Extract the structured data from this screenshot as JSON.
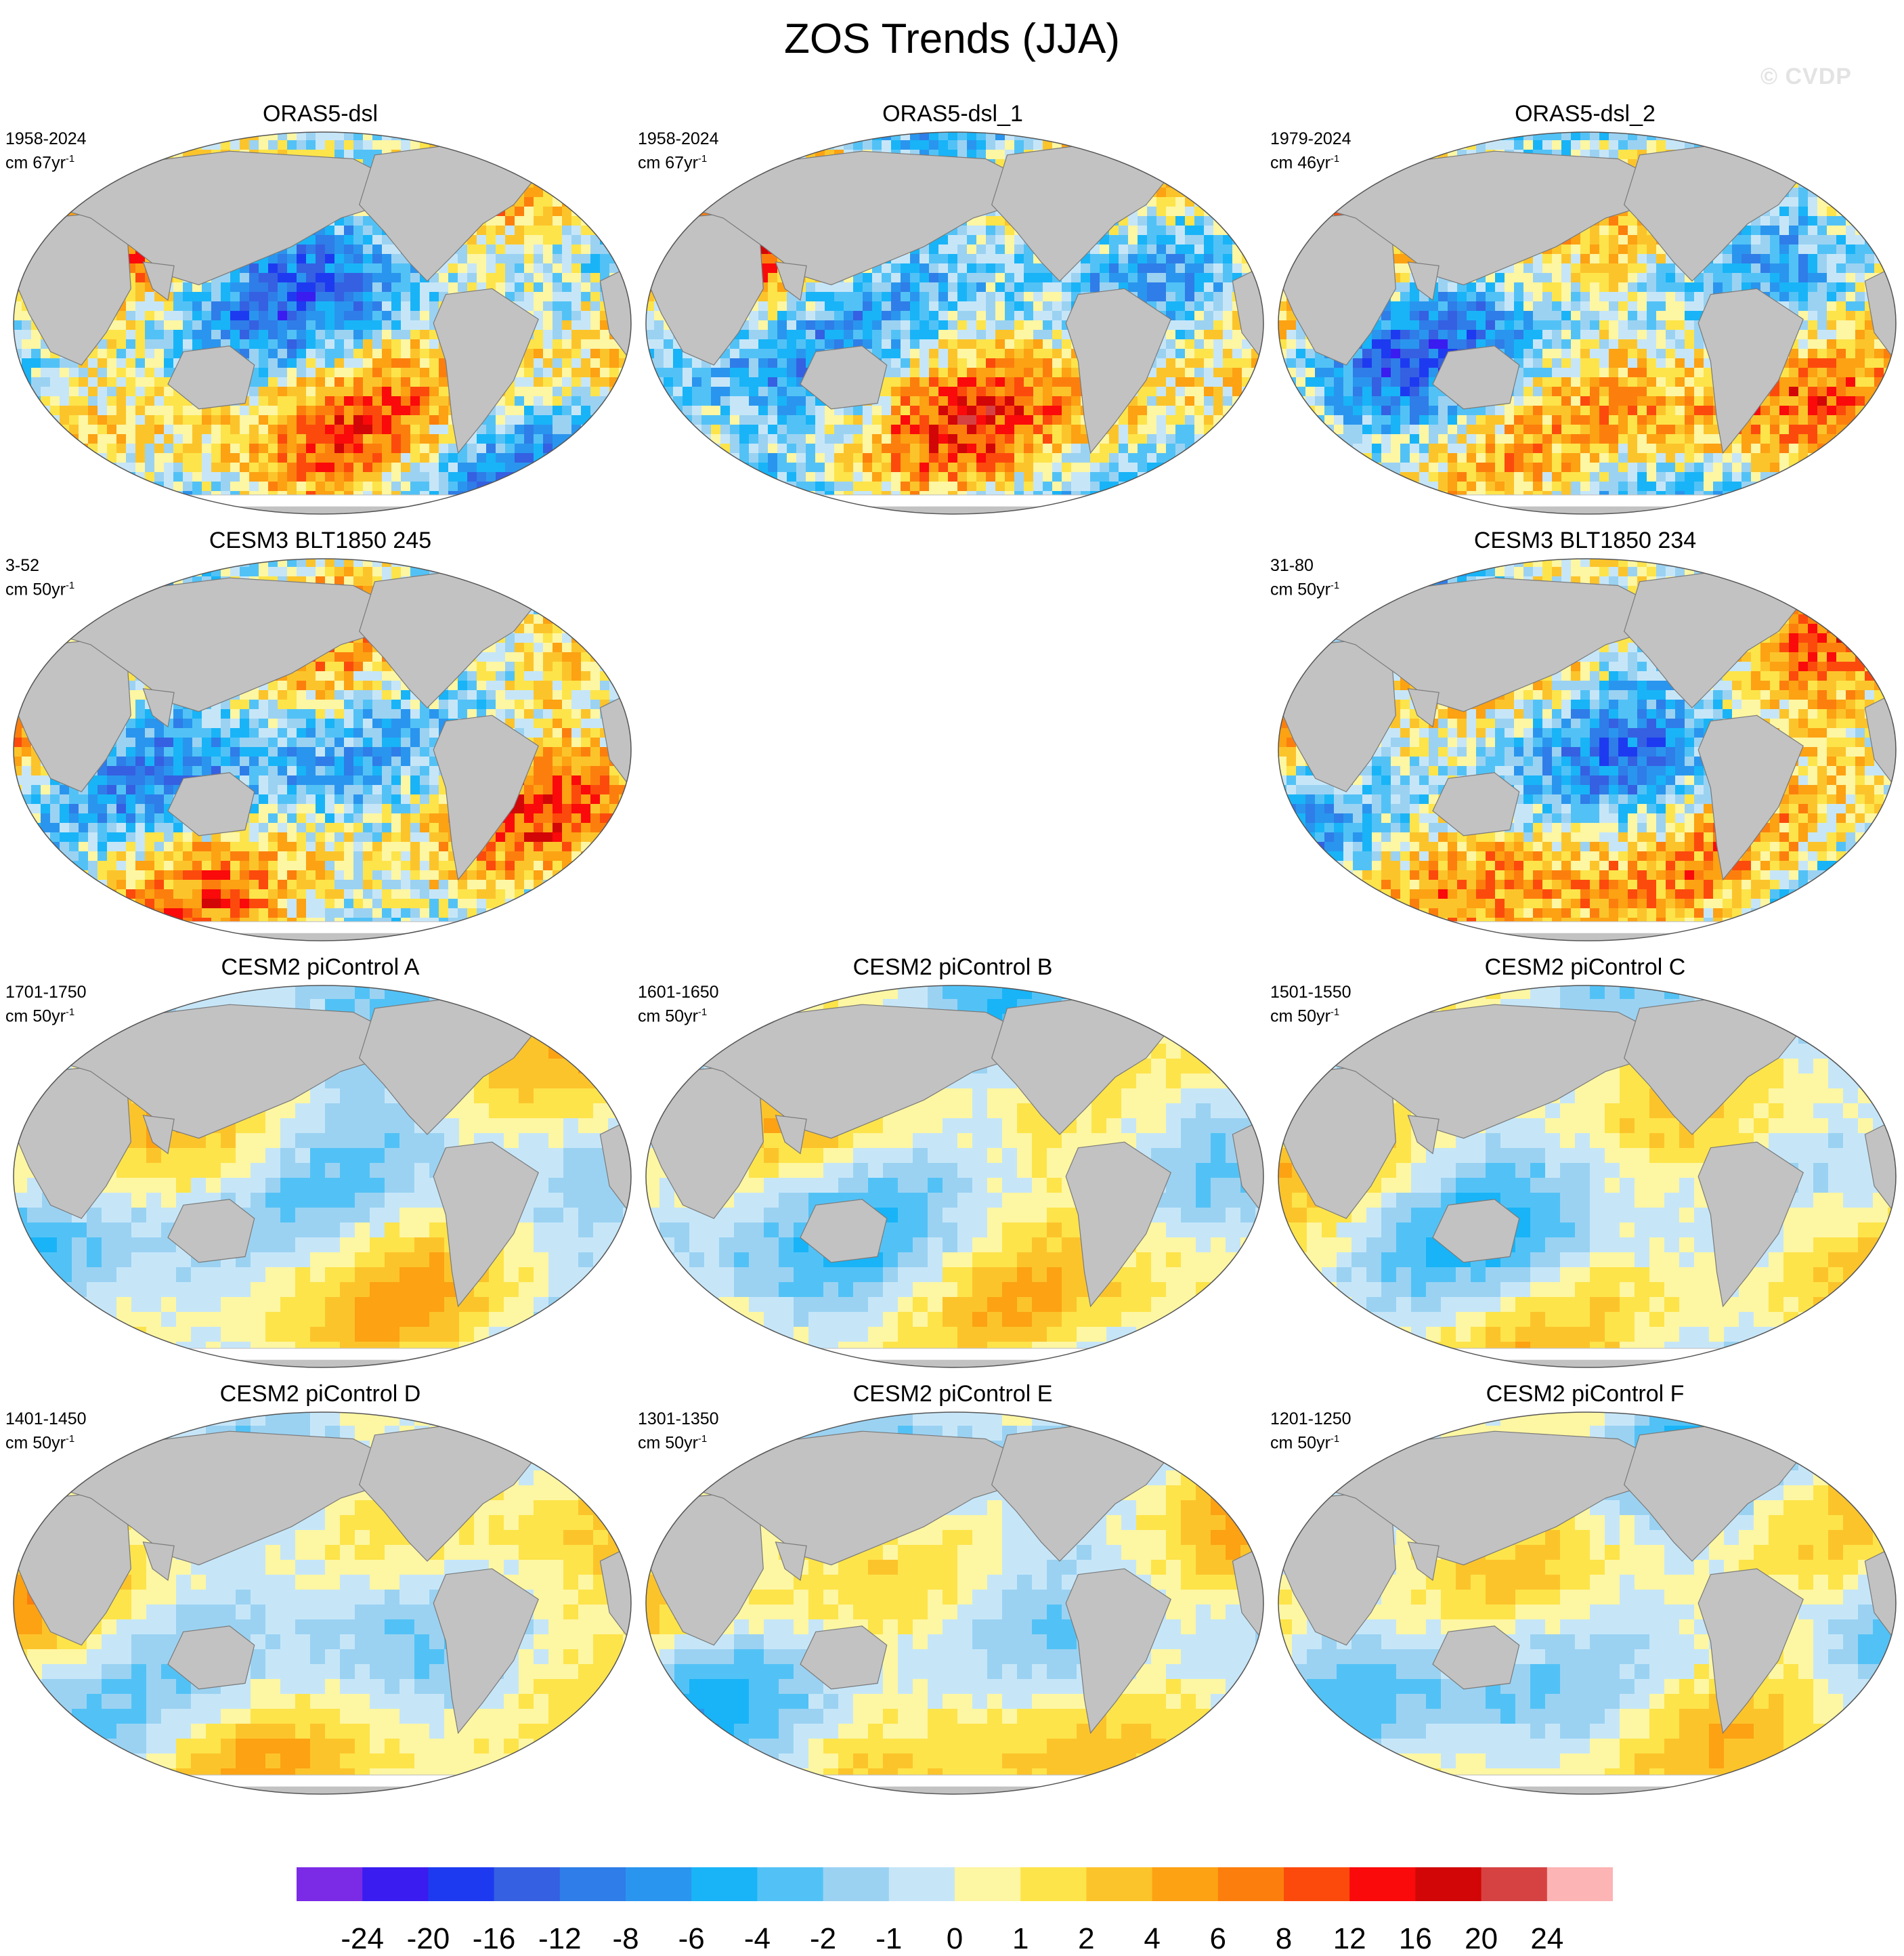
{
  "title": "ZOS Trends (JJA)",
  "watermark": "© CVDP",
  "panels": [
    {
      "title": "ORAS5-dsl",
      "period": "1958-2024",
      "units_prefix": "cm 67yr",
      "units_exp": "-1"
    },
    {
      "title": "ORAS5-dsl_1",
      "period": "1958-2024",
      "units_prefix": "cm 67yr",
      "units_exp": "-1"
    },
    {
      "title": "ORAS5-dsl_2",
      "period": "1979-2024",
      "units_prefix": "cm 46yr",
      "units_exp": "-1"
    },
    {
      "title": "CESM3 BLT1850 245",
      "period": "3-52",
      "units_prefix": "cm 50yr",
      "units_exp": "-1"
    },
    {
      "title": "CESM3 BLT1850 234",
      "period": "31-80",
      "units_prefix": "cm 50yr",
      "units_exp": "-1"
    },
    {
      "title": "CESM2 piControl A",
      "period": "1701-1750",
      "units_prefix": "cm 50yr",
      "units_exp": "-1"
    },
    {
      "title": "CESM2 piControl B",
      "period": "1601-1650",
      "units_prefix": "cm 50yr",
      "units_exp": "-1"
    },
    {
      "title": "CESM2 piControl C",
      "period": "1501-1550",
      "units_prefix": "cm 50yr",
      "units_exp": "-1"
    },
    {
      "title": "CESM2 piControl D",
      "period": "1401-1450",
      "units_prefix": "cm 50yr",
      "units_exp": "-1"
    },
    {
      "title": "CESM2 piControl E",
      "period": "1301-1350",
      "units_prefix": "cm 50yr",
      "units_exp": "-1"
    },
    {
      "title": "CESM2 piControl F",
      "period": "1201-1250",
      "units_prefix": "cm 50yr",
      "units_exp": "-1"
    }
  ],
  "colorbar": {
    "labels": [
      "-24",
      "-20",
      "-16",
      "-12",
      "-8",
      "-6",
      "-4",
      "-2",
      "-1",
      "0",
      "1",
      "2",
      "4",
      "6",
      "8",
      "12",
      "16",
      "20",
      "24"
    ],
    "colors": [
      "#7b2be6",
      "#3a1cf0",
      "#1e3af0",
      "#3560e2",
      "#2f7de8",
      "#2a95ee",
      "#18b4f7",
      "#52c2f6",
      "#9bd2f2",
      "#c6e6f8",
      "#fdf6a3",
      "#fde44a",
      "#fcc42b",
      "#fca213",
      "#fc7f0d",
      "#fc4a0d",
      "#fa0a0a",
      "#d20606",
      "#d64242",
      "#fcb4b4"
    ]
  },
  "colors": {
    "land": "#c2c2c2",
    "border": "#555555"
  }
}
